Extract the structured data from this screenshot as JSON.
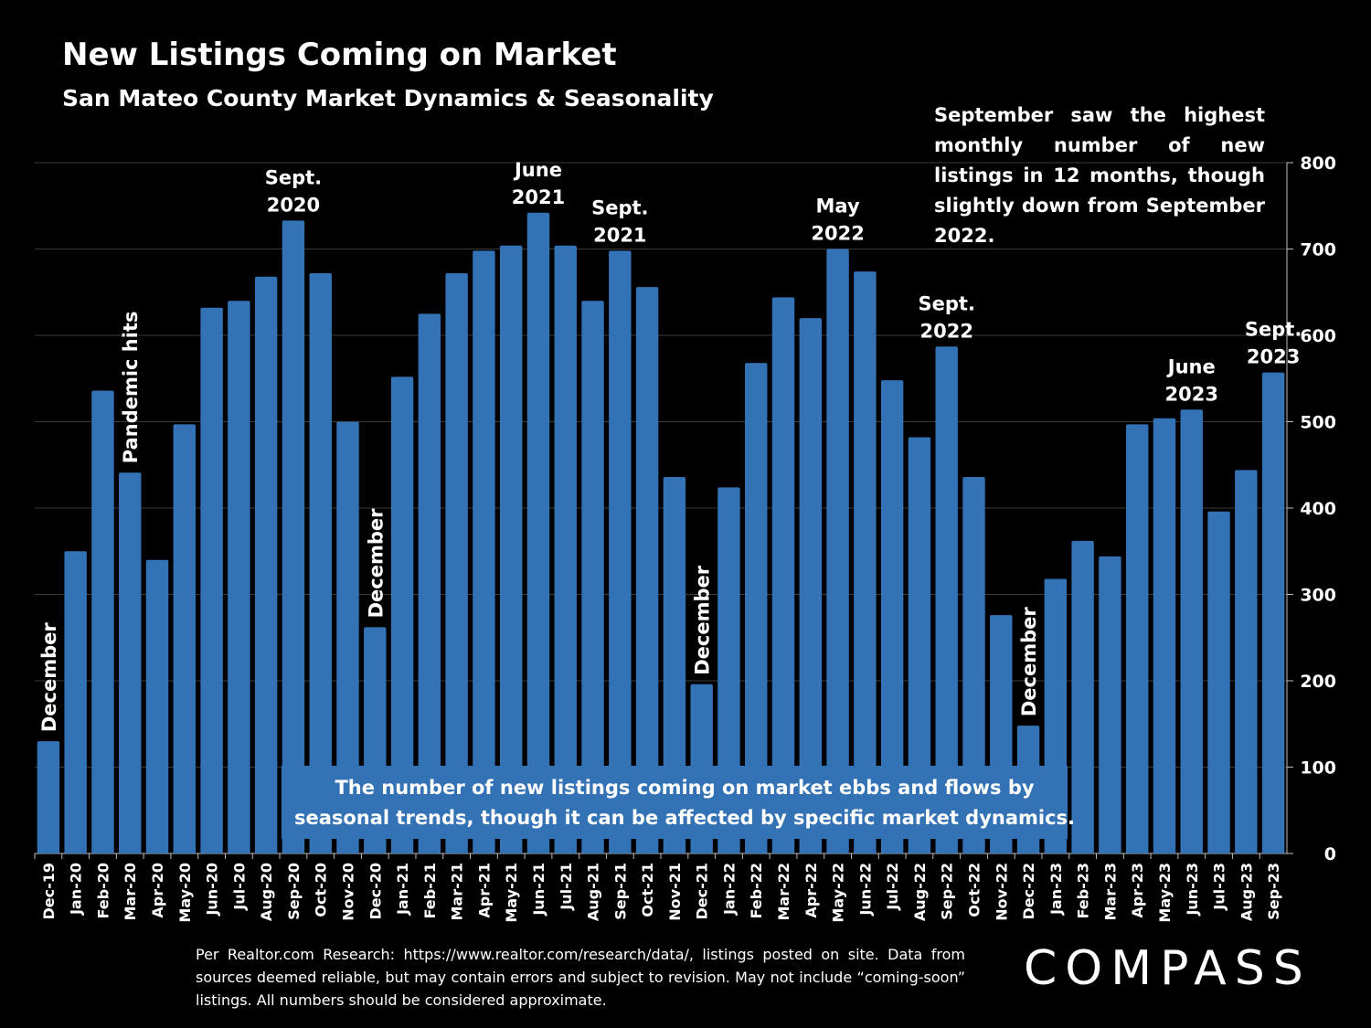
{
  "header": {
    "title": "New Listings Coming on Market",
    "subtitle": "San Mateo County Market Dynamics & Seasonality"
  },
  "callout_text": "September saw the highest monthly number of new listings in 12 months, though slightly down from September 2022.",
  "note_box": {
    "line1": "The number of new listings coming on market ebbs and flows by",
    "line2": "seasonal trends, though it can be affected by specific market dynamics."
  },
  "footer": {
    "source": "Per Realtor.com Research: https://www.realtor.com/research/data/, listings posted on site. Data from sources deemed reliable, but may contain errors and subject to revision. May not include “coming-soon” listings. All numbers should be considered approximate."
  },
  "logo": "COMPASS",
  "colors": {
    "bar": "#3472B6",
    "background": "#000000",
    "text": "#FFFFFF",
    "grid": "#3A3A3A",
    "note_box": "#3472B6"
  },
  "chart_data": {
    "type": "bar",
    "categories": [
      "Dec-19",
      "Jan-20",
      "Feb-20",
      "Mar-20",
      "Apr-20",
      "May-20",
      "Jun-20",
      "Jul-20",
      "Aug-20",
      "Sep-20",
      "Oct-20",
      "Nov-20",
      "Dec-20",
      "Jan-21",
      "Feb-21",
      "Mar-21",
      "Apr-21",
      "May-21",
      "Jun-21",
      "Jul-21",
      "Aug-21",
      "Sep-21",
      "Oct-21",
      "Nov-21",
      "Dec-21",
      "Jan-22",
      "Feb-22",
      "Mar-22",
      "Apr-22",
      "May-22",
      "Jun-22",
      "Jul-22",
      "Aug-22",
      "Sep-22",
      "Oct-22",
      "Nov-22",
      "Dec-22",
      "Jan-23",
      "Feb-23",
      "Mar-23",
      "Apr-23",
      "May-23",
      "Jun-23",
      "Jul-23",
      "Aug-23",
      "Sep-23"
    ],
    "values": [
      130,
      350,
      536,
      441,
      340,
      497,
      632,
      640,
      668,
      733,
      672,
      500,
      262,
      552,
      625,
      672,
      698,
      704,
      742,
      704,
      640,
      698,
      656,
      436,
      196,
      424,
      568,
      644,
      620,
      700,
      674,
      548,
      482,
      587,
      436,
      276,
      148,
      318,
      362,
      344,
      497,
      504,
      514,
      396,
      444,
      557
    ],
    "ylim": [
      0,
      800
    ],
    "yticks": [
      0,
      100,
      200,
      300,
      400,
      500,
      600,
      700,
      800
    ],
    "y_axis_side": "right",
    "grid": true,
    "annotations": [
      {
        "text": "December",
        "index": 0,
        "vertical": true
      },
      {
        "text": "Pandemic hits",
        "index": 3,
        "vertical": true
      },
      {
        "text": "Sept. 2020",
        "index": 9
      },
      {
        "text": "December",
        "index": 12,
        "vertical": true
      },
      {
        "text": "June 2021",
        "index": 18
      },
      {
        "text": "Sept. 2021",
        "index": 21
      },
      {
        "text": "December",
        "index": 24,
        "vertical": true
      },
      {
        "text": "May 2022",
        "index": 29
      },
      {
        "text": "Sept. 2022",
        "index": 33
      },
      {
        "text": "December",
        "index": 36,
        "vertical": true
      },
      {
        "text": "June 2023",
        "index": 42
      },
      {
        "text": "Sept. 2023",
        "index": 45
      }
    ]
  }
}
